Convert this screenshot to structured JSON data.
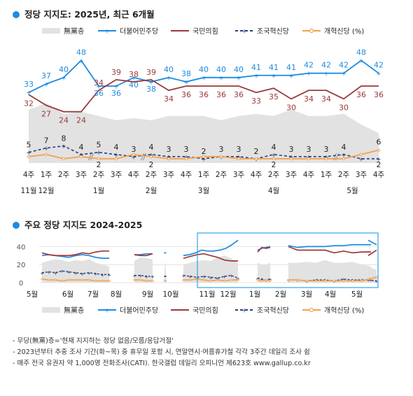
{
  "colors": {
    "dem": "#1e8be0",
    "ppp": "#9b3a3a",
    "rebuild": "#2a3f7a",
    "reform": "#f5a04a",
    "none": "#e2e2e2"
  },
  "chart1_title": "정당 지지도: 2025년, 최근 6개월",
  "chart2_title": "주요 정당 지지도 2024-2025",
  "legend": {
    "none": "無黨층",
    "dem": "더불어민주당",
    "ppp": "국민의힘",
    "rebuild": "조국혁신당",
    "reform": "개혁신당",
    "unit": "(%)"
  },
  "notes": [
    "- 무당(無黨)층='현재 지지하는 정당 없음/모름/응답거절'",
    "- 2023년부터 추중 조사 기간(화~목) 중 휴무일 포함 시, 연말연시·여름휴가철 각각 3주간 데일리 조사 쉼",
    "- 매주 전국 유권자 약 1,000명 전화조사(CATI). 한국갤럽 데일리 오피니언 제623호 www.gallup.co.kr"
  ],
  "chart_data": [
    {
      "type": "line",
      "title": "정당 지지도: 2025년, 최근 6개월",
      "week_labels": [
        "4주",
        "1주",
        "2주",
        "3주",
        "2주",
        "3주",
        "4주",
        "2주",
        "3주",
        "4주",
        "1주",
        "2주",
        "3주",
        "4주",
        "2주",
        "3주",
        "4주",
        "1주",
        "2주",
        "3주",
        "4주"
      ],
      "week_label_top": [
        "",
        "",
        "",
        "",
        "2",
        "",
        "",
        "2",
        "",
        "",
        "",
        "",
        "",
        "",
        "2",
        "",
        "",
        "",
        "",
        "",
        "2"
      ],
      "month_labels": [
        {
          "label": "11월",
          "at": 0
        },
        {
          "label": "12월",
          "at": 1
        },
        {
          "label": "1월",
          "at": 4
        },
        {
          "label": "2월",
          "at": 7
        },
        {
          "label": "3월",
          "at": 10
        },
        {
          "label": "4월",
          "at": 14
        },
        {
          "label": "5월",
          "at": 18.5
        }
      ],
      "ylim": [
        0,
        55
      ],
      "series": [
        {
          "key": "dem",
          "name": "더불어민주당",
          "values": [
            33,
            37,
            40,
            48,
            36,
            36,
            40,
            38,
            40,
            38,
            40,
            40,
            40,
            41,
            41,
            41,
            42,
            42,
            42,
            48,
            42
          ]
        },
        {
          "key": "ppp",
          "name": "국민의힘",
          "values": [
            32,
            27,
            24,
            24,
            34,
            39,
            38,
            39,
            34,
            36,
            36,
            36,
            36,
            33,
            35,
            30,
            34,
            34,
            30,
            36,
            36
          ]
        },
        {
          "key": "rebuild",
          "name": "조국혁신당",
          "values": [
            5,
            7,
            8,
            4,
            5,
            4,
            3,
            4,
            3,
            3,
            2,
            3,
            3,
            2,
            4,
            3,
            3,
            3,
            4,
            2,
            2
          ]
        },
        {
          "key": "reform",
          "name": "개혁신당",
          "values": [
            3,
            4,
            2,
            3,
            2,
            2,
            4,
            3,
            2,
            2,
            3,
            3,
            2,
            2,
            2,
            2,
            2,
            2,
            2,
            4,
            6
          ]
        }
      ],
      "none_area": [
        25,
        28,
        23,
        24,
        22,
        20,
        21,
        20,
        22,
        22,
        22,
        20,
        22,
        23,
        22,
        25,
        22,
        22,
        23,
        18,
        14
      ],
      "labels": {
        "dem": [
          "33",
          "37",
          "40",
          "48",
          "36",
          "36",
          "40",
          "38",
          "40",
          "38",
          "40",
          "40",
          "40",
          "41",
          "41",
          "41",
          "42",
          "42",
          "42",
          "48",
          "42"
        ],
        "ppp": [
          "32",
          "27",
          "24",
          "24",
          "34",
          "39",
          "38",
          "39",
          "34",
          "36",
          "36",
          "36",
          "36",
          "33",
          "35",
          "30",
          "34",
          "34",
          "30",
          "36",
          ""
        ],
        "ppp_last": "36",
        "rebuild": [
          "5",
          "7",
          "8",
          "4",
          "5",
          "4",
          "3",
          "4",
          "3",
          "3",
          "2",
          "3",
          "3",
          "2",
          "4",
          "3",
          "3",
          "3",
          "4",
          "",
          ""
        ],
        "reform": [
          "",
          "",
          "",
          "",
          "",
          "",
          "",
          "",
          "",
          "",
          "",
          "",
          "",
          "",
          "",
          "",
          "",
          "",
          "",
          "",
          "6"
        ]
      }
    },
    {
      "type": "line",
      "title": "주요 정당 지지도 2024-2025",
      "yticks": [
        "0",
        "20",
        "40"
      ],
      "ylim": [
        0,
        55
      ],
      "month_labels": [
        "5월",
        "6월",
        "7월",
        "8월",
        "9월",
        "10월",
        "11월",
        "12월",
        "1월",
        "2월",
        "3월",
        "4월",
        "5월"
      ],
      "series": [
        {
          "key": "dem",
          "name": "더불어민주당",
          "segments": [
            [
              30,
              31,
              30,
              29,
              28,
              30,
              31,
              30,
              28,
              27,
              27
            ],
            [
              31,
              31,
              32,
              32
            ],
            [
              33
            ],
            [
              30,
              31,
              33,
              36,
              35,
              35,
              36,
              38,
              42,
              47
            ],
            [
              36,
              38,
              39,
              40
            ],
            [
              41,
              39,
              40,
              40,
              40,
              41,
              41,
              42,
              42,
              42
            ],
            [
              47,
              42
            ]
          ]
        },
        {
          "key": "ppp",
          "name": "국민의힘",
          "segments": [
            [
              33,
              31,
              30,
              30,
              30,
              31,
              33,
              32,
              34,
              35,
              35
            ],
            [
              31,
              30,
              30,
              32
            ],
            [
              27,
              29,
              31,
              32,
              30,
              28,
              25,
              24,
              24
            ],
            [
              34,
              39,
              38,
              39
            ],
            [
              40,
              36,
              36,
              36,
              36,
              33,
              35,
              33,
              34,
              34
            ],
            [
              30,
              36
            ]
          ]
        },
        {
          "key": "rebuild",
          "name": "조국혁신당",
          "segments": [
            [
              11,
              12,
              11,
              13,
              12,
              11,
              10,
              11,
              10,
              9,
              9
            ],
            [
              8,
              8,
              7,
              7
            ],
            [
              7
            ],
            [
              8,
              7,
              6,
              7,
              6,
              5,
              7,
              8,
              5
            ],
            [
              5,
              4,
              3,
              4
            ],
            [
              3,
              3,
              2,
              3,
              3,
              2,
              4,
              3,
              3,
              3
            ],
            [
              3,
              2
            ]
          ]
        },
        {
          "key": "reform",
          "name": "개혁신당",
          "segments": [
            [
              4,
              3,
              3,
              2,
              3,
              3,
              3,
              3,
              2,
              2,
              2
            ],
            [
              3,
              3,
              2,
              2
            ],
            [
              2
            ],
            [
              3,
              3,
              4,
              3,
              2,
              3,
              2,
              3,
              3
            ],
            [
              3,
              2,
              3,
              2
            ],
            [
              3,
              3,
              2,
              2,
              2,
              2,
              2,
              2,
              2,
              4
            ],
            [
              4,
              6
            ]
          ]
        }
      ]
    }
  ]
}
